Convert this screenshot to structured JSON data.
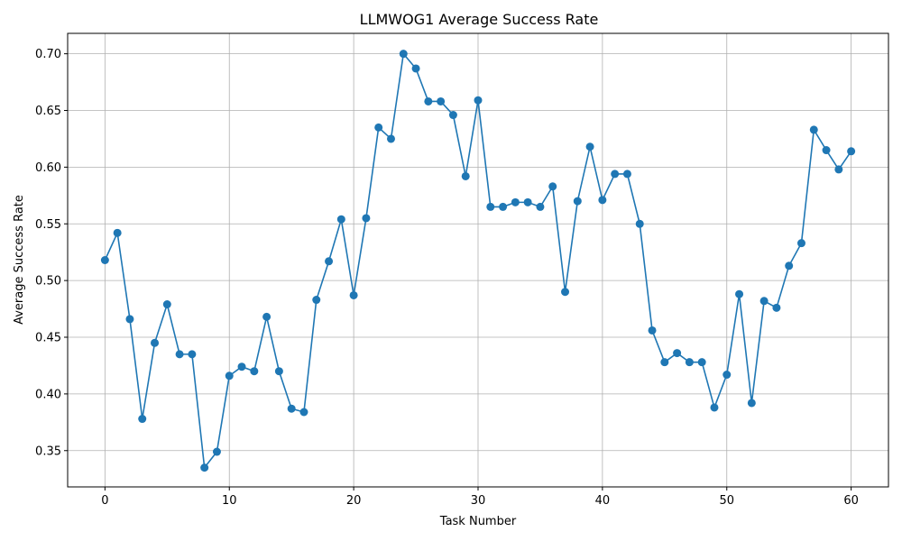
{
  "chart_data": {
    "type": "line",
    "title": "LLMWOG1 Average Success Rate",
    "xlabel": "Task Number",
    "ylabel": "Average Success Rate",
    "xlim": [
      -3,
      63
    ],
    "ylim": [
      0.318,
      0.718
    ],
    "xticks": [
      0,
      10,
      20,
      30,
      40,
      50,
      60
    ],
    "yticks": [
      0.35,
      0.4,
      0.45,
      0.5,
      0.55,
      0.6,
      0.65,
      0.7
    ],
    "ytick_labels": [
      "0.35",
      "0.40",
      "0.45",
      "0.50",
      "0.55",
      "0.60",
      "0.65",
      "0.70"
    ],
    "grid": true,
    "color": "#1f77b4",
    "marker": "circle",
    "x": [
      0,
      1,
      2,
      3,
      4,
      5,
      6,
      7,
      8,
      9,
      10,
      11,
      12,
      13,
      14,
      15,
      16,
      17,
      18,
      19,
      20,
      21,
      22,
      23,
      24,
      25,
      26,
      27,
      28,
      29,
      30,
      31,
      32,
      33,
      34,
      35,
      36,
      37,
      38,
      39,
      40,
      41,
      42,
      43,
      44,
      45,
      46,
      47,
      48,
      49,
      50,
      51,
      52,
      53,
      54,
      55,
      56,
      57,
      58,
      59,
      60
    ],
    "y": [
      0.518,
      0.542,
      0.466,
      0.378,
      0.445,
      0.479,
      0.435,
      0.435,
      0.335,
      0.349,
      0.416,
      0.424,
      0.42,
      0.468,
      0.42,
      0.387,
      0.384,
      0.483,
      0.517,
      0.554,
      0.487,
      0.555,
      0.635,
      0.625,
      0.7,
      0.687,
      0.658,
      0.658,
      0.646,
      0.592,
      0.659,
      0.565,
      0.565,
      0.569,
      0.569,
      0.565,
      0.583,
      0.49,
      0.57,
      0.618,
      0.571,
      0.594,
      0.594,
      0.55,
      0.456,
      0.428,
      0.436,
      0.428,
      0.428,
      0.388,
      0.417,
      0.488,
      0.392,
      0.482,
      0.476,
      0.513,
      0.533,
      0.633,
      0.615,
      0.598,
      0.614
    ]
  }
}
